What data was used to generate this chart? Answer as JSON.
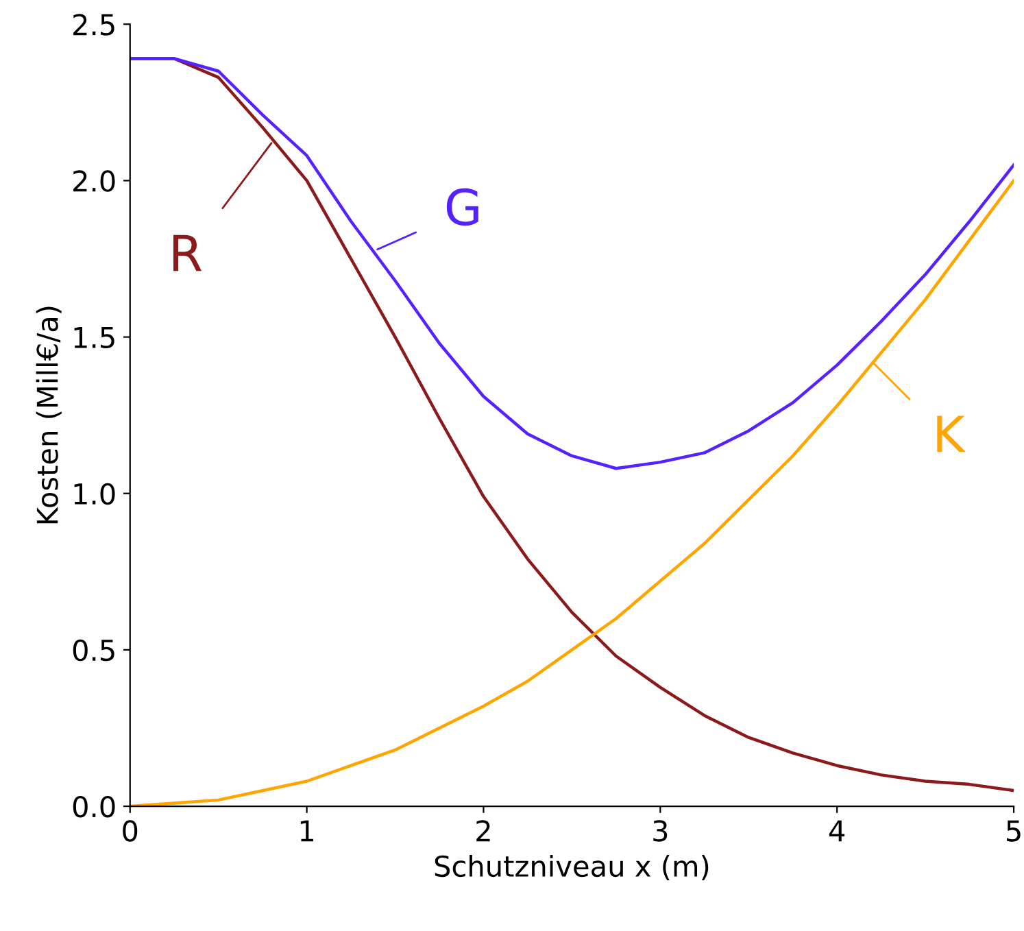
{
  "chart_data": {
    "type": "line",
    "xlabel": "Schutzniveau x (m)",
    "ylabel": "Kosten (Mill€/a)",
    "xlim": [
      0,
      5
    ],
    "ylim": [
      0,
      2.5
    ],
    "xticks": [
      0,
      1,
      2,
      3,
      4,
      5
    ],
    "yticks": [
      {
        "value": 0,
        "label": "0.0"
      },
      {
        "value": 0.5,
        "label": "0.5"
      },
      {
        "value": 1,
        "label": "1.0"
      },
      {
        "value": 1.5,
        "label": "1.5"
      },
      {
        "value": 2,
        "label": "2.0"
      },
      {
        "value": 2.5,
        "label": "2.5"
      }
    ],
    "grid": false,
    "legend": false,
    "marker": "none",
    "line_style": "solid",
    "x": [
      0,
      0.25,
      0.5,
      0.75,
      1,
      1.25,
      1.5,
      1.75,
      2,
      2.25,
      2.5,
      2.75,
      3,
      3.25,
      3.5,
      3.75,
      4,
      4.25,
      4.5,
      4.75,
      5
    ],
    "series": [
      {
        "color": "#8b1a1a",
        "values": [
          2.39,
          2.39,
          2.33,
          2.17,
          2.0,
          1.75,
          1.5,
          1.24,
          0.99,
          0.79,
          0.62,
          0.48,
          0.38,
          0.29,
          0.22,
          0.17,
          0.13,
          0.1,
          0.08,
          0.07,
          0.05
        ]
      },
      {
        "color": "#5522ff",
        "values": [
          2.39,
          2.39,
          2.35,
          2.21,
          2.08,
          1.87,
          1.68,
          1.48,
          1.31,
          1.19,
          1.12,
          1.08,
          1.1,
          1.13,
          1.2,
          1.29,
          1.41,
          1.55,
          1.7,
          1.87,
          2.05
        ]
      },
      {
        "color": "#ffa500",
        "values": [
          0,
          0.01,
          0.02,
          0.05,
          0.08,
          0.13,
          0.18,
          0.25,
          0.32,
          0.4,
          0.5,
          0.6,
          0.72,
          0.84,
          0.98,
          1.12,
          1.28,
          1.45,
          1.62,
          1.81,
          2.0
        ]
      }
    ],
    "annotations": [
      {
        "text": "R",
        "x": 0.8,
        "y": 2.12
      },
      {
        "text": "G",
        "x": 1.4,
        "y": 1.78
      },
      {
        "text": "K",
        "x": 4.2,
        "y": 1.42
      }
    ]
  }
}
